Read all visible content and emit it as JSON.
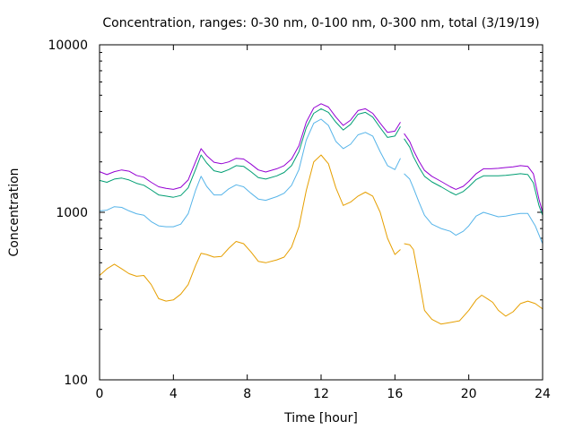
{
  "chart_data": {
    "type": "line",
    "title": "Concentration, ranges: 0-30 nm, 0-100 nm, 0-300 nm, total (3/19/19)",
    "xlabel": "Time [hour]",
    "ylabel": "Concentration",
    "xlim": [
      0,
      24
    ],
    "ylim": [
      100,
      10000
    ],
    "yscale": "log",
    "grid": false,
    "legend": "none",
    "x_ticks": [
      0,
      4,
      8,
      12,
      16,
      20,
      24
    ],
    "y_ticks": [
      100,
      1000,
      10000
    ],
    "x_tick_labels": [
      "0",
      "4",
      "8",
      "12",
      "16",
      "20",
      "24"
    ],
    "y_tick_labels": [
      "100",
      "1000",
      "10000"
    ],
    "series": [
      {
        "color": "#e69f00",
        "segments": [
          [
            [
              0,
              420
            ],
            [
              0.4,
              460
            ],
            [
              0.8,
              490
            ],
            [
              1.2,
              460
            ],
            [
              1.6,
              430
            ],
            [
              2.0,
              415
            ],
            [
              2.4,
              420
            ],
            [
              2.8,
              370
            ],
            [
              3.2,
              305
            ],
            [
              3.6,
              295
            ],
            [
              4.0,
              300
            ],
            [
              4.4,
              325
            ],
            [
              4.8,
              370
            ],
            [
              5.2,
              480
            ],
            [
              5.5,
              570
            ],
            [
              5.8,
              560
            ],
            [
              6.2,
              540
            ],
            [
              6.6,
              545
            ],
            [
              7.0,
              610
            ],
            [
              7.4,
              670
            ],
            [
              7.8,
              650
            ],
            [
              8.2,
              580
            ],
            [
              8.6,
              510
            ],
            [
              9.0,
              500
            ],
            [
              9.6,
              520
            ],
            [
              10.0,
              540
            ],
            [
              10.4,
              620
            ],
            [
              10.8,
              820
            ],
            [
              11.2,
              1350
            ],
            [
              11.6,
              2000
            ],
            [
              12.0,
              2200
            ],
            [
              12.4,
              1950
            ],
            [
              12.8,
              1400
            ],
            [
              13.2,
              1100
            ],
            [
              13.6,
              1150
            ],
            [
              14.0,
              1250
            ],
            [
              14.4,
              1320
            ],
            [
              14.8,
              1250
            ],
            [
              15.2,
              1000
            ],
            [
              15.6,
              700
            ],
            [
              16.0,
              560
            ],
            [
              16.3,
              600
            ]
          ],
          [
            [
              16.5,
              650
            ],
            [
              16.8,
              640
            ],
            [
              17.0,
              600
            ],
            [
              17.3,
              400
            ],
            [
              17.6,
              260
            ],
            [
              18.0,
              230
            ],
            [
              18.5,
              215
            ],
            [
              19.0,
              220
            ],
            [
              19.5,
              225
            ],
            [
              20.0,
              260
            ],
            [
              20.4,
              300
            ],
            [
              20.7,
              320
            ],
            [
              21.0,
              305
            ],
            [
              21.3,
              290
            ],
            [
              21.6,
              260
            ],
            [
              22.0,
              240
            ],
            [
              22.4,
              255
            ],
            [
              22.8,
              285
            ],
            [
              23.2,
              295
            ],
            [
              23.6,
              285
            ],
            [
              24.0,
              265
            ]
          ]
        ]
      },
      {
        "color": "#56b4e9",
        "segments": [
          [
            [
              0,
              1020
            ],
            [
              0.4,
              1030
            ],
            [
              0.8,
              1080
            ],
            [
              1.2,
              1070
            ],
            [
              1.6,
              1020
            ],
            [
              2.0,
              980
            ],
            [
              2.4,
              960
            ],
            [
              2.8,
              880
            ],
            [
              3.2,
              830
            ],
            [
              3.6,
              820
            ],
            [
              4.0,
              820
            ],
            [
              4.4,
              850
            ],
            [
              4.8,
              980
            ],
            [
              5.2,
              1350
            ],
            [
              5.5,
              1640
            ],
            [
              5.8,
              1430
            ],
            [
              6.2,
              1270
            ],
            [
              6.6,
              1270
            ],
            [
              7.0,
              1380
            ],
            [
              7.4,
              1460
            ],
            [
              7.8,
              1420
            ],
            [
              8.2,
              1300
            ],
            [
              8.6,
              1200
            ],
            [
              9.0,
              1180
            ],
            [
              9.6,
              1240
            ],
            [
              10.0,
              1300
            ],
            [
              10.4,
              1450
            ],
            [
              10.8,
              1800
            ],
            [
              11.2,
              2700
            ],
            [
              11.6,
              3400
            ],
            [
              12.0,
              3600
            ],
            [
              12.4,
              3300
            ],
            [
              12.8,
              2650
            ],
            [
              13.2,
              2400
            ],
            [
              13.6,
              2550
            ],
            [
              14.0,
              2900
            ],
            [
              14.4,
              3000
            ],
            [
              14.8,
              2850
            ],
            [
              15.2,
              2300
            ],
            [
              15.6,
              1900
            ],
            [
              16.0,
              1800
            ],
            [
              16.3,
              2100
            ]
          ],
          [
            [
              16.5,
              1700
            ],
            [
              16.8,
              1580
            ],
            [
              17.0,
              1400
            ],
            [
              17.3,
              1150
            ],
            [
              17.6,
              960
            ],
            [
              18.0,
              850
            ],
            [
              18.5,
              800
            ],
            [
              19.0,
              770
            ],
            [
              19.3,
              730
            ],
            [
              19.7,
              770
            ],
            [
              20.0,
              830
            ],
            [
              20.4,
              950
            ],
            [
              20.8,
              1000
            ],
            [
              21.2,
              970
            ],
            [
              21.6,
              940
            ],
            [
              22.0,
              950
            ],
            [
              22.4,
              970
            ],
            [
              22.8,
              985
            ],
            [
              23.2,
              985
            ],
            [
              23.6,
              830
            ],
            [
              24.0,
              650
            ]
          ]
        ]
      },
      {
        "color": "#009e73",
        "segments": [
          [
            [
              0,
              1550
            ],
            [
              0.4,
              1510
            ],
            [
              0.8,
              1580
            ],
            [
              1.2,
              1600
            ],
            [
              1.6,
              1560
            ],
            [
              2.0,
              1490
            ],
            [
              2.4,
              1450
            ],
            [
              2.8,
              1360
            ],
            [
              3.2,
              1270
            ],
            [
              3.6,
              1250
            ],
            [
              4.0,
              1230
            ],
            [
              4.4,
              1260
            ],
            [
              4.8,
              1400
            ],
            [
              5.2,
              1800
            ],
            [
              5.5,
              2200
            ],
            [
              5.8,
              1970
            ],
            [
              6.2,
              1770
            ],
            [
              6.6,
              1730
            ],
            [
              7.0,
              1800
            ],
            [
              7.4,
              1900
            ],
            [
              7.8,
              1880
            ],
            [
              8.2,
              1750
            ],
            [
              8.6,
              1610
            ],
            [
              9.0,
              1580
            ],
            [
              9.6,
              1650
            ],
            [
              10.0,
              1730
            ],
            [
              10.4,
              1900
            ],
            [
              10.8,
              2300
            ],
            [
              11.2,
              3200
            ],
            [
              11.6,
              3900
            ],
            [
              12.0,
              4150
            ],
            [
              12.4,
              3950
            ],
            [
              12.8,
              3450
            ],
            [
              13.2,
              3100
            ],
            [
              13.6,
              3350
            ],
            [
              14.0,
              3850
            ],
            [
              14.4,
              3950
            ],
            [
              14.8,
              3700
            ],
            [
              15.2,
              3200
            ],
            [
              15.6,
              2800
            ],
            [
              16.0,
              2850
            ],
            [
              16.3,
              3250
            ]
          ],
          [
            [
              16.5,
              2750
            ],
            [
              16.8,
              2450
            ],
            [
              17.0,
              2150
            ],
            [
              17.3,
              1860
            ],
            [
              17.6,
              1640
            ],
            [
              18.0,
              1520
            ],
            [
              18.5,
              1420
            ],
            [
              19.0,
              1320
            ],
            [
              19.3,
              1270
            ],
            [
              19.7,
              1330
            ],
            [
              20.0,
              1420
            ],
            [
              20.4,
              1570
            ],
            [
              20.8,
              1650
            ],
            [
              21.2,
              1650
            ],
            [
              21.6,
              1650
            ],
            [
              22.0,
              1660
            ],
            [
              22.4,
              1680
            ],
            [
              22.8,
              1700
            ],
            [
              23.2,
              1680
            ],
            [
              23.5,
              1500
            ],
            [
              23.8,
              1100
            ],
            [
              24.0,
              960
            ]
          ]
        ]
      },
      {
        "color": "#9400d3",
        "segments": [
          [
            [
              0,
              1750
            ],
            [
              0.4,
              1680
            ],
            [
              0.8,
              1750
            ],
            [
              1.2,
              1790
            ],
            [
              1.6,
              1760
            ],
            [
              2.0,
              1660
            ],
            [
              2.4,
              1620
            ],
            [
              2.8,
              1510
            ],
            [
              3.2,
              1420
            ],
            [
              3.6,
              1390
            ],
            [
              4.0,
              1370
            ],
            [
              4.4,
              1410
            ],
            [
              4.8,
              1560
            ],
            [
              5.2,
              2000
            ],
            [
              5.5,
              2400
            ],
            [
              5.8,
              2180
            ],
            [
              6.2,
              1990
            ],
            [
              6.6,
              1950
            ],
            [
              7.0,
              2000
            ],
            [
              7.4,
              2100
            ],
            [
              7.8,
              2080
            ],
            [
              8.2,
              1940
            ],
            [
              8.6,
              1790
            ],
            [
              9.0,
              1740
            ],
            [
              9.6,
              1820
            ],
            [
              10.0,
              1900
            ],
            [
              10.4,
              2080
            ],
            [
              10.8,
              2500
            ],
            [
              11.2,
              3450
            ],
            [
              11.6,
              4200
            ],
            [
              12.0,
              4450
            ],
            [
              12.4,
              4250
            ],
            [
              12.8,
              3700
            ],
            [
              13.2,
              3300
            ],
            [
              13.6,
              3550
            ],
            [
              14.0,
              4050
            ],
            [
              14.4,
              4150
            ],
            [
              14.8,
              3900
            ],
            [
              15.2,
              3400
            ],
            [
              15.6,
              3000
            ],
            [
              16.0,
              3050
            ],
            [
              16.3,
              3450
            ]
          ],
          [
            [
              16.5,
              2950
            ],
            [
              16.8,
              2650
            ],
            [
              17.0,
              2350
            ],
            [
              17.3,
              2020
            ],
            [
              17.6,
              1780
            ],
            [
              18.0,
              1640
            ],
            [
              18.5,
              1530
            ],
            [
              19.0,
              1420
            ],
            [
              19.3,
              1370
            ],
            [
              19.7,
              1430
            ],
            [
              20.0,
              1530
            ],
            [
              20.4,
              1700
            ],
            [
              20.8,
              1820
            ],
            [
              21.2,
              1820
            ],
            [
              21.6,
              1830
            ],
            [
              22.0,
              1850
            ],
            [
              22.4,
              1870
            ],
            [
              22.8,
              1900
            ],
            [
              23.2,
              1880
            ],
            [
              23.5,
              1700
            ],
            [
              23.8,
              1200
            ],
            [
              24.0,
              1000
            ]
          ]
        ]
      }
    ]
  }
}
